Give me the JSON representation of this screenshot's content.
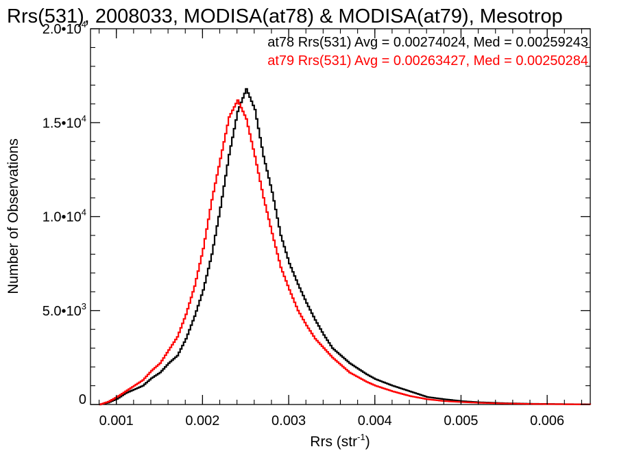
{
  "chart_data": {
    "type": "line",
    "title": "Rrs(531), 2008033, MODISA(at78) & MODISA(at79), Mesotrop",
    "xlabel": "Rrs (str",
    "xlabel_sup": "-1",
    "xlabel_close": ")",
    "ylabel": "Number of Observations",
    "xlim": [
      0.0007,
      0.0065
    ],
    "ylim": [
      0,
      20000
    ],
    "grid": false,
    "legend": "top-right",
    "x_ticks": [
      {
        "value": 0.001,
        "label": "0.001"
      },
      {
        "value": 0.002,
        "label": "0.002"
      },
      {
        "value": 0.003,
        "label": "0.003"
      },
      {
        "value": 0.004,
        "label": "0.004"
      },
      {
        "value": 0.005,
        "label": "0.005"
      },
      {
        "value": 0.006,
        "label": "0.006"
      }
    ],
    "y_ticks": [
      {
        "value": 0,
        "mant": "0",
        "exp": ""
      },
      {
        "value": 5000,
        "mant": "5.0•10",
        "exp": "3"
      },
      {
        "value": 10000,
        "mant": "1.0•10",
        "exp": "4"
      },
      {
        "value": 15000,
        "mant": "1.5•10",
        "exp": "4"
      },
      {
        "value": 20000,
        "mant": "2.0•10",
        "exp": "4"
      }
    ],
    "stats": [
      {
        "text": "at78 Rrs(531) Avg = 0.00274024, Med = 0.00259243",
        "color": "#000000"
      },
      {
        "text": "at79 Rrs(531) Avg = 0.00263427, Med = 0.00250284",
        "color": "#ff0000"
      }
    ],
    "series": [
      {
        "color": "#000000",
        "x": [
          0.0008,
          0.0009,
          0.001,
          0.0011,
          0.0012,
          0.0013,
          0.0014,
          0.0015,
          0.0016,
          0.0017,
          0.0018,
          0.0019,
          0.002,
          0.0021,
          0.0022,
          0.0023,
          0.0024,
          0.0025,
          0.0026,
          0.0027,
          0.0028,
          0.0029,
          0.003,
          0.0031,
          0.0032,
          0.0033,
          0.0034,
          0.0035,
          0.0036,
          0.0037,
          0.0038,
          0.0039,
          0.004,
          0.0042,
          0.0044,
          0.0046,
          0.0048,
          0.005,
          0.0052,
          0.0055,
          0.0058,
          0.0062,
          0.0065
        ],
        "y": [
          0,
          100,
          300,
          600,
          800,
          1000,
          1400,
          1700,
          2200,
          2600,
          3500,
          4700,
          6100,
          8000,
          10500,
          13300,
          15600,
          16800,
          15700,
          13200,
          11300,
          9000,
          7500,
          6400,
          5400,
          4500,
          3700,
          3000,
          2600,
          2200,
          1900,
          1600,
          1350,
          1000,
          700,
          400,
          280,
          180,
          120,
          70,
          40,
          20,
          10
        ]
      },
      {
        "color": "#ff0000",
        "x": [
          0.0008,
          0.0009,
          0.001,
          0.0011,
          0.0012,
          0.0013,
          0.0014,
          0.0015,
          0.0016,
          0.0017,
          0.0018,
          0.0019,
          0.002,
          0.0021,
          0.0022,
          0.0023,
          0.0024,
          0.0025,
          0.0026,
          0.0027,
          0.0028,
          0.0029,
          0.003,
          0.0031,
          0.0032,
          0.0033,
          0.0034,
          0.0035,
          0.0036,
          0.0037,
          0.0038,
          0.0039,
          0.004,
          0.0042,
          0.0044,
          0.0046,
          0.0048,
          0.005,
          0.0052,
          0.0055,
          0.0058,
          0.0062,
          0.0065
        ],
        "y": [
          0,
          150,
          400,
          700,
          1000,
          1300,
          1800,
          2200,
          2900,
          3600,
          4800,
          6300,
          8300,
          10900,
          13100,
          15300,
          16200,
          15200,
          13200,
          11000,
          9100,
          7300,
          6100,
          5000,
          4200,
          3500,
          3000,
          2500,
          2100,
          1700,
          1450,
          1200,
          1000,
          700,
          450,
          280,
          180,
          130,
          90,
          55,
          30,
          15,
          5
        ]
      }
    ]
  }
}
